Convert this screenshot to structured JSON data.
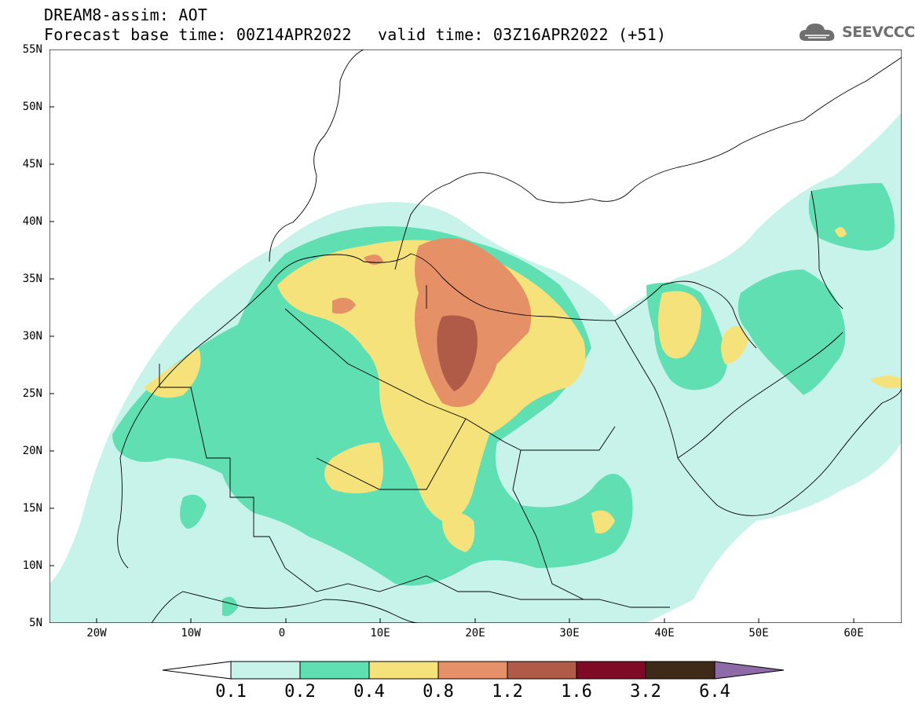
{
  "header": {
    "model": "DREAM8-assim: AOT",
    "base_time": "Forecast base time: 00Z14APR2022",
    "valid_time": "valid time: 03Z16APR2022 (+51)"
  },
  "logo": {
    "text": "SEEVCCC",
    "icon": "cloud-icon"
  },
  "map": {
    "lat_labels": [
      "55N",
      "50N",
      "45N",
      "40N",
      "35N",
      "30N",
      "25N",
      "20N",
      "15N",
      "10N",
      "5N"
    ],
    "lon_labels": [
      "20W",
      "10W",
      "0",
      "10E",
      "20E",
      "30E",
      "40E",
      "50E",
      "60E"
    ],
    "extent": {
      "lon": [
        -25,
        65
      ],
      "lat": [
        5,
        55
      ]
    }
  },
  "colorbar": {
    "labels": [
      "0.1",
      "0.2",
      "0.4",
      "0.8",
      "1.2",
      "1.6",
      "3.2",
      "6.4"
    ],
    "colors": [
      "#ffffff",
      "#c8f3ea",
      "#60dfb3",
      "#f5e27a",
      "#e69068",
      "#b05a48",
      "#7f0a26",
      "#3f2a18",
      "#8f6aa8"
    ]
  }
}
